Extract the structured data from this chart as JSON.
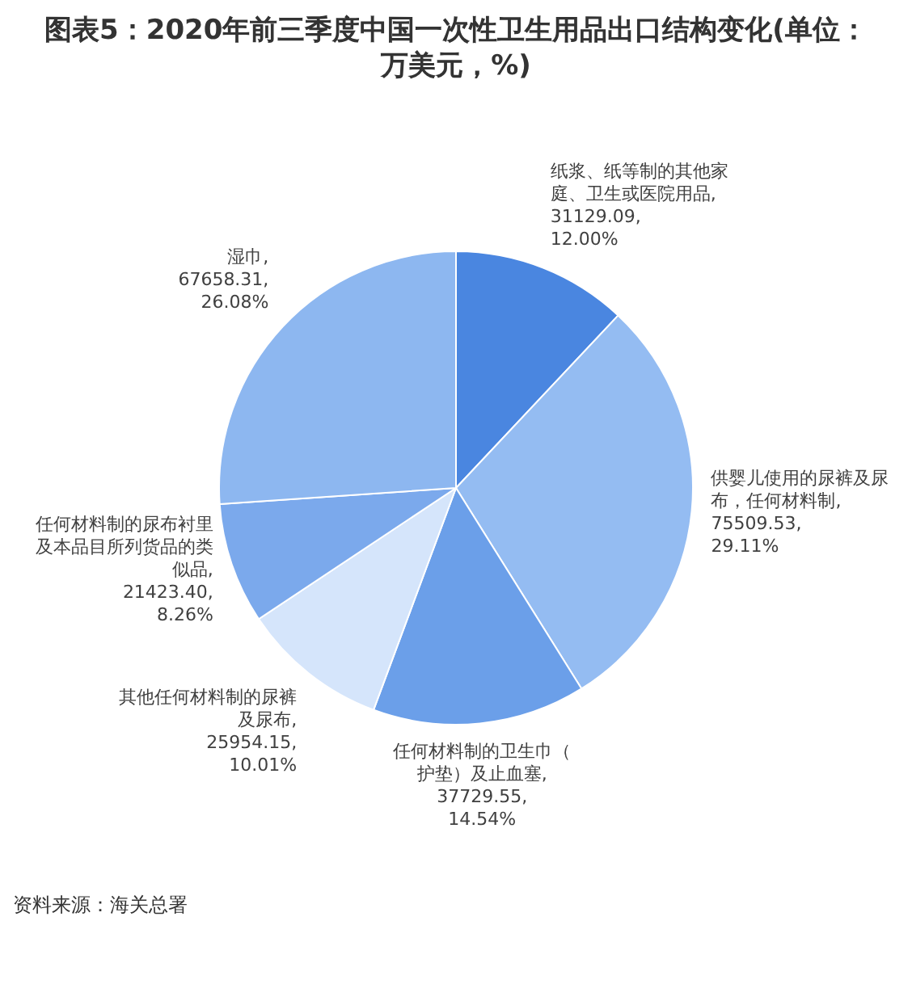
{
  "chart_data": {
    "type": "pie",
    "title": "图表5：2020年前三季度中国一次性卫生用品出口结构变化(单位：万美元，%)",
    "categories": [
      "纸浆、纸等制的其他家庭、卫生或医院用品",
      "供婴儿使用的尿裤及尿布，任何材料制",
      "任何材料制的卫生巾（护垫）及止血塞",
      "其他任何材料制的尿裤及尿布",
      "任何材料制的尿布衬里及本品目所列货品的类似品",
      "湿巾"
    ],
    "values": [
      31129.09,
      75509.53,
      37729.55,
      25954.15,
      21423.4,
      67658.31
    ],
    "value_labels": [
      ", 31129.09, 12.00%",
      ", 75509.53, 29.11%",
      ", 37729.55, 14.54%",
      ", 25954.15, 10.01%",
      ", 21423.40, 8.26%",
      ", 67658.31, 26.08%"
    ],
    "colors": [
      "#4a86e0",
      "#94bcf2",
      "#6b9fe9",
      "#d5e5fb",
      "#7ba9ec",
      "#8db7f0"
    ],
    "legend": false,
    "annotations": [
      "资料来源：海关总署"
    ]
  }
}
